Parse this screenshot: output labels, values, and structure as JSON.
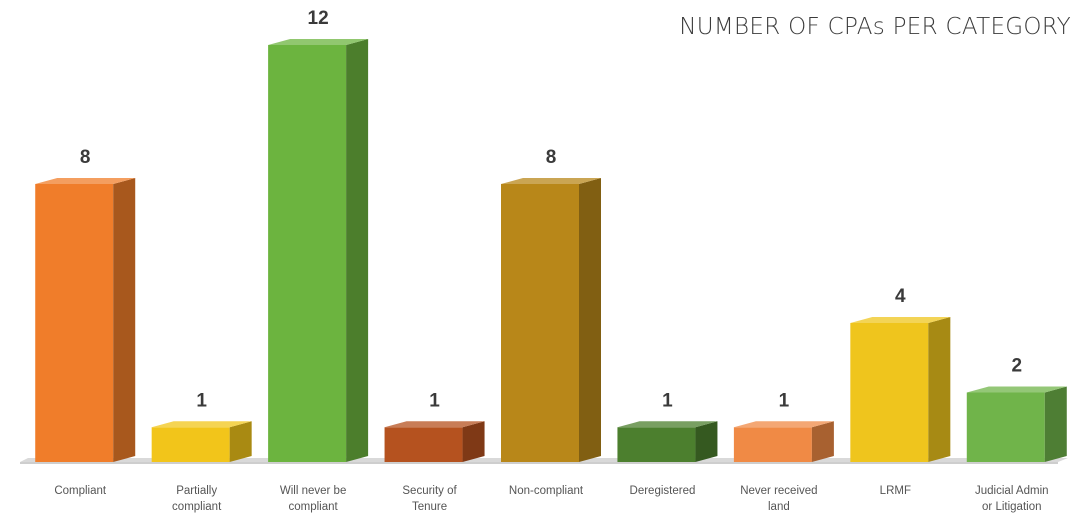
{
  "chart_data": {
    "type": "bar",
    "title": "NUMBER OF CPAs PER CATEGORY",
    "categories": [
      "Compliant",
      "Partially compliant",
      "Will never be compliant",
      "Security of Tenure",
      "Non-compliant",
      "Deregistered",
      "Never received land",
      "LRMF",
      "Judicial Admin or Litigation"
    ],
    "category_lines": [
      [
        "Compliant"
      ],
      [
        "Partially",
        "compliant"
      ],
      [
        "Will never be",
        "compliant"
      ],
      [
        "Security of",
        "Tenure"
      ],
      [
        "Non-compliant"
      ],
      [
        "Deregistered"
      ],
      [
        "Never received",
        "land"
      ],
      [
        "LRMF"
      ],
      [
        "Judicial Admin",
        "or Litigation"
      ]
    ],
    "values": [
      8,
      1,
      12,
      1,
      8,
      1,
      1,
      4,
      2
    ],
    "colors": [
      "#f07d2a",
      "#f2c51a",
      "#6cb43f",
      "#b5521f",
      "#b88719",
      "#4c7f2e",
      "#f08a45",
      "#efc51d",
      "#70b44a"
    ],
    "xlabel": "",
    "ylabel": "",
    "ylim": [
      0,
      12
    ],
    "grid": false,
    "legend": "none",
    "style": "3d-columns"
  }
}
